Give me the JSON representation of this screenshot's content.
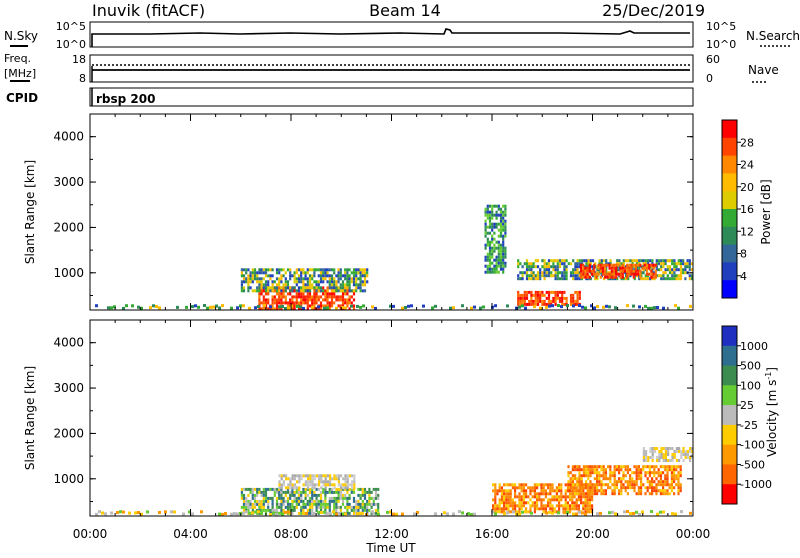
{
  "header": {
    "station": "Inuvik (fitACF)",
    "beam": "Beam 14",
    "date": "25/Dec/2019"
  },
  "labels": {
    "nsky": "N.Sky",
    "nsearch": "N.Search",
    "freq_line1": "Freq.",
    "freq_line2": "[MHz]",
    "nave": "Nave",
    "cpid": "CPID",
    "cpid_value": "rbsp 200",
    "yaxis_range": "Slant Range [km]",
    "xaxis": "Time UT",
    "power_label": "Power [dB]",
    "velocity_label_base": "Velocity [m s",
    "velocity_label_sup": "-1",
    "velocity_label_end": "]"
  },
  "status_panels": {
    "nsky_ticks": [
      "10^5",
      "10^0"
    ],
    "nsearch_ticks": [
      "10^5",
      "10^0"
    ],
    "freq_ticks": [
      "18",
      "8"
    ],
    "nave_ticks": [
      "60",
      "0"
    ]
  },
  "chart_data": [
    {
      "type": "heatmap",
      "title": "",
      "ylabel": "Slant Range [km]",
      "xlabel": "Time UT",
      "ylim": [
        180,
        4500
      ],
      "xlim": [
        0,
        24
      ],
      "y_ticks": [
        "4000",
        "3000",
        "2000",
        "1000"
      ],
      "x_ticks": [
        "00:00",
        "04:00",
        "08:00",
        "12:00",
        "16:00",
        "20:00",
        "00:00"
      ],
      "colorbar": {
        "label": "Power [dB]",
        "tick_labels": [
          "28",
          "24",
          "20",
          "16",
          "12",
          "8",
          "4"
        ],
        "colors": [
          "#ff0000",
          "#ff4400",
          "#ff8800",
          "#ffbb00",
          "#ddcc00",
          "#33aa33",
          "#2e8b57",
          "#336699",
          "#1f3fbf",
          "#0000ff"
        ]
      },
      "features": [
        {
          "t0": 6.7,
          "t1": 10.5,
          "r0": 200,
          "r1": 700,
          "level": "high"
        },
        {
          "t0": 6.0,
          "t1": 11.0,
          "r0": 600,
          "r1": 1100,
          "level": "mid"
        },
        {
          "t0": 17.0,
          "t1": 24.0,
          "r0": 900,
          "r1": 1300,
          "level": "mid"
        },
        {
          "t0": 19.5,
          "t1": 22.5,
          "r0": 900,
          "r1": 1200,
          "level": "high"
        },
        {
          "t0": 17.0,
          "t1": 19.5,
          "r0": 300,
          "r1": 600,
          "level": "high"
        },
        {
          "t0": 15.7,
          "t1": 16.5,
          "r0": 1000,
          "r1": 2500,
          "level": "low"
        }
      ]
    },
    {
      "type": "heatmap",
      "title": "",
      "ylabel": "Slant Range [km]",
      "xlabel": "Time UT",
      "ylim": [
        180,
        4500
      ],
      "xlim": [
        0,
        24
      ],
      "y_ticks": [
        "4000",
        "3000",
        "2000",
        "1000"
      ],
      "x_ticks": [
        "00:00",
        "04:00",
        "08:00",
        "12:00",
        "16:00",
        "20:00",
        "00:00"
      ],
      "colorbar": {
        "label": "Velocity [m s-1]",
        "tick_labels": [
          "1000",
          "500",
          "100",
          "25",
          "-25",
          "-100",
          "-500",
          "-1000"
        ],
        "colors": [
          "#1f2fbf",
          "#2e6e8e",
          "#3c8c50",
          "#66cc33",
          "#bbbbbb",
          "#ffcc00",
          "#ff9900",
          "#ff6600",
          "#ff0000"
        ]
      },
      "features": [
        {
          "t0": 6.0,
          "t1": 11.5,
          "r0": 250,
          "r1": 800,
          "level": "green"
        },
        {
          "t0": 7.5,
          "t1": 10.5,
          "r0": 800,
          "r1": 1100,
          "level": "gray"
        },
        {
          "t0": 16.0,
          "t1": 20.0,
          "r0": 300,
          "r1": 900,
          "level": "orange"
        },
        {
          "t0": 19.0,
          "t1": 23.5,
          "r0": 700,
          "r1": 1300,
          "level": "orange"
        },
        {
          "t0": 22.0,
          "t1": 24.0,
          "r0": 1400,
          "r1": 1700,
          "level": "gray"
        }
      ]
    }
  ]
}
